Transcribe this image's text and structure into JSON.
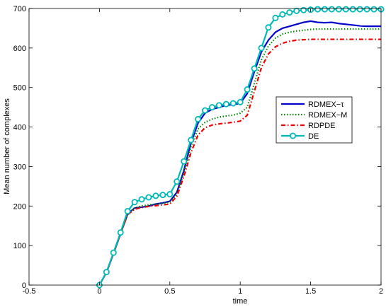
{
  "chart_data": {
    "type": "line",
    "title": "",
    "xlabel": "time",
    "ylabel": "Mean number of complexes",
    "xlim": [
      -0.5,
      2
    ],
    "ylim": [
      0,
      700
    ],
    "xticks": [
      "-0.5",
      "0",
      "0.5",
      "1",
      "1.5",
      "2"
    ],
    "yticks": [
      "0",
      "100",
      "200",
      "300",
      "400",
      "500",
      "600",
      "700"
    ],
    "grid": false,
    "legend_position": "right",
    "series": [
      {
        "name": "RDMEX−τ",
        "color": "#0000cc",
        "style": "solid",
        "x": [
          0,
          0.05,
          0.1,
          0.15,
          0.2,
          0.25,
          0.3,
          0.35,
          0.4,
          0.45,
          0.5,
          0.55,
          0.6,
          0.65,
          0.7,
          0.75,
          0.8,
          0.85,
          0.9,
          0.95,
          1.0,
          1.05,
          1.1,
          1.15,
          1.2,
          1.25,
          1.3,
          1.35,
          1.4,
          1.45,
          1.5,
          1.55,
          1.6,
          1.65,
          1.7,
          1.75,
          1.8,
          1.85,
          1.9,
          1.95,
          2.0
        ],
        "y": [
          0,
          32,
          80,
          130,
          180,
          195,
          197,
          200,
          205,
          208,
          212,
          235,
          290,
          360,
          410,
          435,
          445,
          450,
          455,
          457,
          460,
          485,
          540,
          590,
          620,
          640,
          650,
          655,
          660,
          665,
          668,
          665,
          664,
          665,
          662,
          660,
          658,
          656,
          655,
          655,
          655
        ]
      },
      {
        "name": "RDMEX−M",
        "color": "#008800",
        "style": "dotted",
        "x": [
          0,
          0.05,
          0.1,
          0.15,
          0.2,
          0.25,
          0.3,
          0.35,
          0.4,
          0.45,
          0.5,
          0.55,
          0.6,
          0.65,
          0.7,
          0.75,
          0.8,
          0.85,
          0.9,
          0.95,
          1.0,
          1.05,
          1.1,
          1.15,
          1.2,
          1.25,
          1.3,
          1.35,
          1.4,
          1.45,
          1.5,
          1.55,
          1.6,
          1.65,
          1.7,
          1.75,
          1.8,
          1.85,
          1.9,
          1.95,
          2.0
        ],
        "y": [
          0,
          32,
          80,
          130,
          180,
          195,
          200,
          203,
          205,
          207,
          210,
          230,
          285,
          350,
          395,
          412,
          420,
          425,
          428,
          430,
          435,
          450,
          510,
          570,
          605,
          625,
          635,
          640,
          643,
          645,
          647,
          648,
          648,
          648,
          648,
          648,
          648,
          648,
          648,
          648,
          648
        ]
      },
      {
        "name": "RDPDE",
        "color": "#ee0000",
        "style": "dashdot",
        "x": [
          0,
          0.05,
          0.1,
          0.15,
          0.2,
          0.25,
          0.3,
          0.35,
          0.4,
          0.45,
          0.5,
          0.55,
          0.6,
          0.65,
          0.7,
          0.75,
          0.8,
          0.85,
          0.9,
          0.95,
          1.0,
          1.05,
          1.1,
          1.15,
          1.2,
          1.25,
          1.3,
          1.35,
          1.4,
          1.45,
          1.5,
          1.55,
          1.6,
          1.65,
          1.7,
          1.75,
          1.8,
          1.85,
          1.9,
          1.95,
          2.0
        ],
        "y": [
          0,
          32,
          80,
          130,
          178,
          192,
          196,
          199,
          201,
          203,
          205,
          225,
          275,
          335,
          380,
          398,
          405,
          408,
          410,
          412,
          415,
          430,
          490,
          550,
          585,
          603,
          612,
          617,
          620,
          621,
          622,
          622,
          622,
          622,
          622,
          622,
          622,
          622,
          622,
          622,
          622
        ]
      },
      {
        "name": "DE",
        "color": "#00b8b8",
        "style": "solid-marker",
        "x": [
          0,
          0.05,
          0.1,
          0.15,
          0.2,
          0.25,
          0.3,
          0.35,
          0.4,
          0.45,
          0.5,
          0.55,
          0.6,
          0.65,
          0.7,
          0.75,
          0.8,
          0.85,
          0.9,
          0.95,
          1.0,
          1.05,
          1.1,
          1.15,
          1.2,
          1.25,
          1.3,
          1.35,
          1.4,
          1.45,
          1.5,
          1.55,
          1.6,
          1.65,
          1.7,
          1.75,
          1.8,
          1.85,
          1.9,
          1.95,
          2.0
        ],
        "y": [
          0,
          33,
          82,
          133,
          187,
          210,
          217,
          222,
          226,
          228,
          230,
          262,
          313,
          367,
          420,
          442,
          450,
          455,
          458,
          460,
          463,
          495,
          548,
          600,
          652,
          676,
          685,
          690,
          694,
          696,
          697,
          698,
          698,
          698,
          698,
          698,
          698,
          698,
          698,
          698,
          698
        ]
      }
    ]
  }
}
